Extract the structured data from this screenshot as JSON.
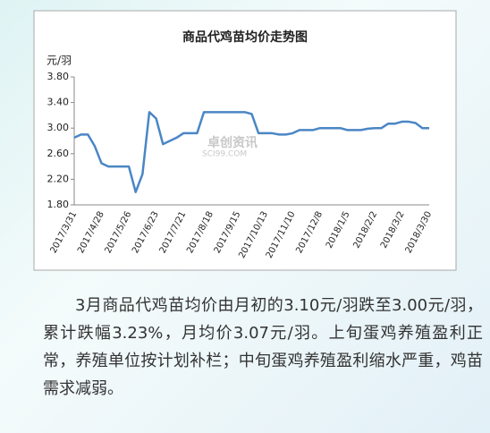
{
  "chart_data": {
    "type": "line",
    "title": "商品代鸡苗均价走势图",
    "y_unit": "元/羽",
    "watermark": [
      "卓创资讯",
      "SCI99.COM"
    ],
    "categories": [
      "2017/3/31",
      null,
      null,
      null,
      "2017/4/28",
      null,
      null,
      null,
      "2017/5/26",
      null,
      null,
      null,
      "2017/6/23",
      null,
      null,
      null,
      "2017/7/21",
      null,
      null,
      null,
      "2017/8/18",
      null,
      null,
      null,
      "2017/9/15",
      null,
      null,
      null,
      "2017/10/13",
      null,
      null,
      null,
      "2017/11/10",
      null,
      null,
      null,
      "2017/12/8",
      null,
      null,
      null,
      "2018/1/5",
      null,
      null,
      null,
      "2018/2/2",
      null,
      null,
      null,
      "2018/3/2",
      null,
      null,
      null,
      "2018/3/30"
    ],
    "series": [
      {
        "color": "#4a86c5",
        "values": [
          2.85,
          2.9,
          2.9,
          2.72,
          2.45,
          2.4,
          2.4,
          2.4,
          2.4,
          2.0,
          2.28,
          3.25,
          3.15,
          2.75,
          2.8,
          2.85,
          2.92,
          2.92,
          2.92,
          3.25,
          3.25,
          3.25,
          3.25,
          3.25,
          3.25,
          3.25,
          3.22,
          2.92,
          2.92,
          2.92,
          2.9,
          2.9,
          2.92,
          2.97,
          2.97,
          2.97,
          3.0,
          3.0,
          3.0,
          3.0,
          2.97,
          2.97,
          2.97,
          2.99,
          3.0,
          3.0,
          3.07,
          3.07,
          3.1,
          3.1,
          3.08,
          3.0,
          3.0
        ]
      }
    ],
    "ylim": [
      1.8,
      3.8
    ],
    "yticks": [
      {
        "value": 1.8,
        "label": "1.80"
      },
      {
        "value": 2.2,
        "label": "2.20"
      },
      {
        "value": 2.6,
        "label": "2.60"
      },
      {
        "value": 3.0,
        "label": "3.00"
      },
      {
        "value": 3.4,
        "label": "3.40"
      },
      {
        "value": 3.8,
        "label": "3.80"
      }
    ],
    "grid": false
  },
  "article": {
    "text": "3月商品代鸡苗均价由月初的3.10元/羽跌至3.00元/羽，累计跌幅3.23%，月均价3.07元/羽。上旬蛋鸡养殖盈利正常，养殖单位按计划补栏；中旬蛋鸡养殖盈利缩水严重，鸡苗需求减弱。"
  }
}
